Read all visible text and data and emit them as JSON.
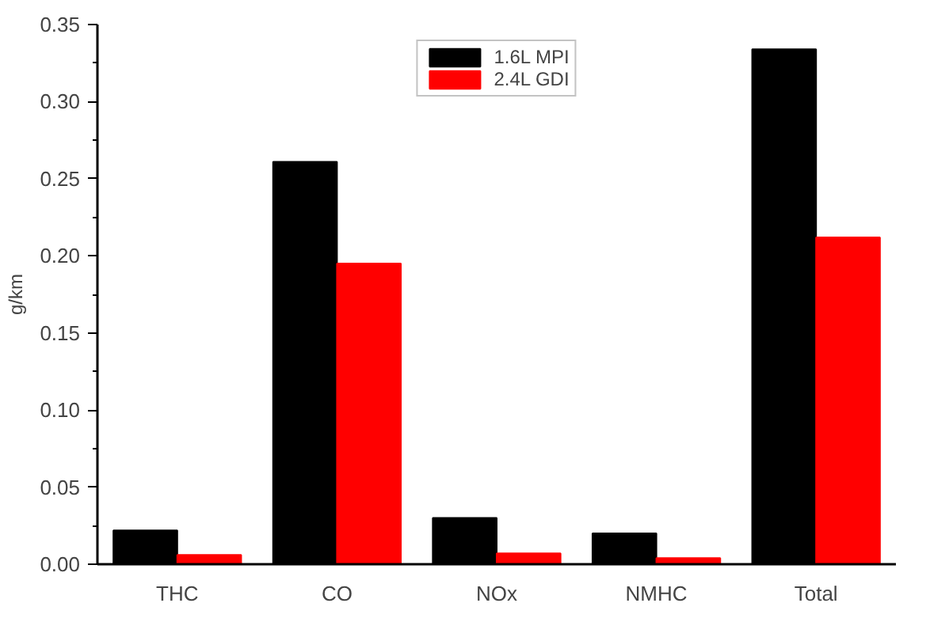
{
  "chart_data": {
    "type": "bar",
    "ylabel": "g/km",
    "categories": [
      "THC",
      "CO",
      "NOx",
      "NMHC",
      "Total"
    ],
    "series": [
      {
        "name": "1.6L MPI",
        "color": "#000000",
        "values": [
          0.022,
          0.261,
          0.03,
          0.02,
          0.334
        ]
      },
      {
        "name": "2.4L GDI",
        "color": "#ff0000",
        "values": [
          0.006,
          0.195,
          0.007,
          0.004,
          0.212
        ]
      }
    ],
    "ylim": [
      0,
      0.35
    ],
    "yticks": [
      {
        "value": 0,
        "label": "0.00"
      },
      {
        "value": 0.05,
        "label": "0.05"
      },
      {
        "value": 0.1,
        "label": "0.10"
      },
      {
        "value": 0.15,
        "label": "0.15"
      },
      {
        "value": 0.2,
        "label": "0.20"
      },
      {
        "value": 0.25,
        "label": "0.25"
      },
      {
        "value": 0.3,
        "label": "0.30"
      },
      {
        "value": 0.35,
        "label": "0.35"
      }
    ],
    "grid": false,
    "legend": "top"
  }
}
